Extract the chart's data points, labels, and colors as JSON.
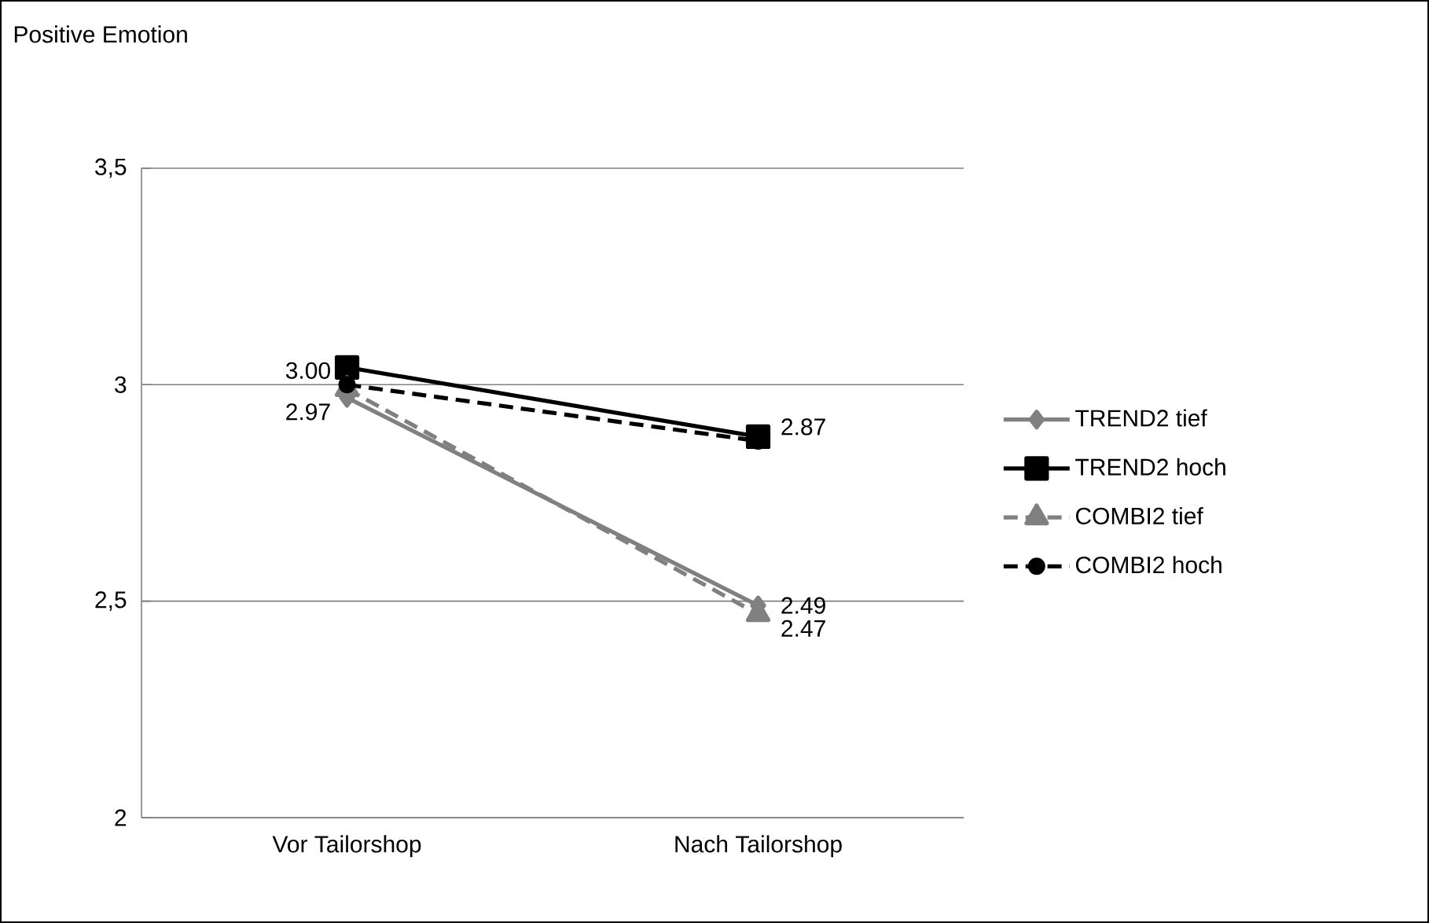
{
  "chart_data": {
    "type": "line",
    "title": "Positive Emotion",
    "categories": [
      "Vor Tailorshop",
      "Nach Tailorshop"
    ],
    "series": [
      {
        "name": "TREND2 tief",
        "color": "#808080",
        "values": [
          2.97,
          2.49
        ],
        "marker": "diamond",
        "line_style": "solid",
        "value_labels": [
          "2.97",
          "2.49"
        ]
      },
      {
        "name": "TREND2 hoch",
        "color": "#000000",
        "values": [
          3.04,
          2.88
        ],
        "marker": "square",
        "line_style": "solid",
        "value_labels": [
          null,
          null
        ]
      },
      {
        "name": "COMBI2 tief",
        "color": "#808080",
        "values": [
          2.99,
          2.47
        ],
        "marker": "triangle",
        "line_style": "dashed",
        "value_labels": [
          null,
          "2.47"
        ]
      },
      {
        "name": "COMBI2 hoch",
        "color": "#000000",
        "values": [
          3.0,
          2.87
        ],
        "marker": "circle",
        "line_style": "dashed",
        "value_labels": [
          "3.00",
          "2.87"
        ]
      }
    ],
    "ylim": [
      2,
      3.5
    ],
    "yticks": [
      2,
      {
        "value": 2.5,
        "label": "2,5"
      },
      3,
      {
        "value": 3.5,
        "label": "3,5"
      }
    ],
    "grid": "y",
    "legend": "right"
  }
}
